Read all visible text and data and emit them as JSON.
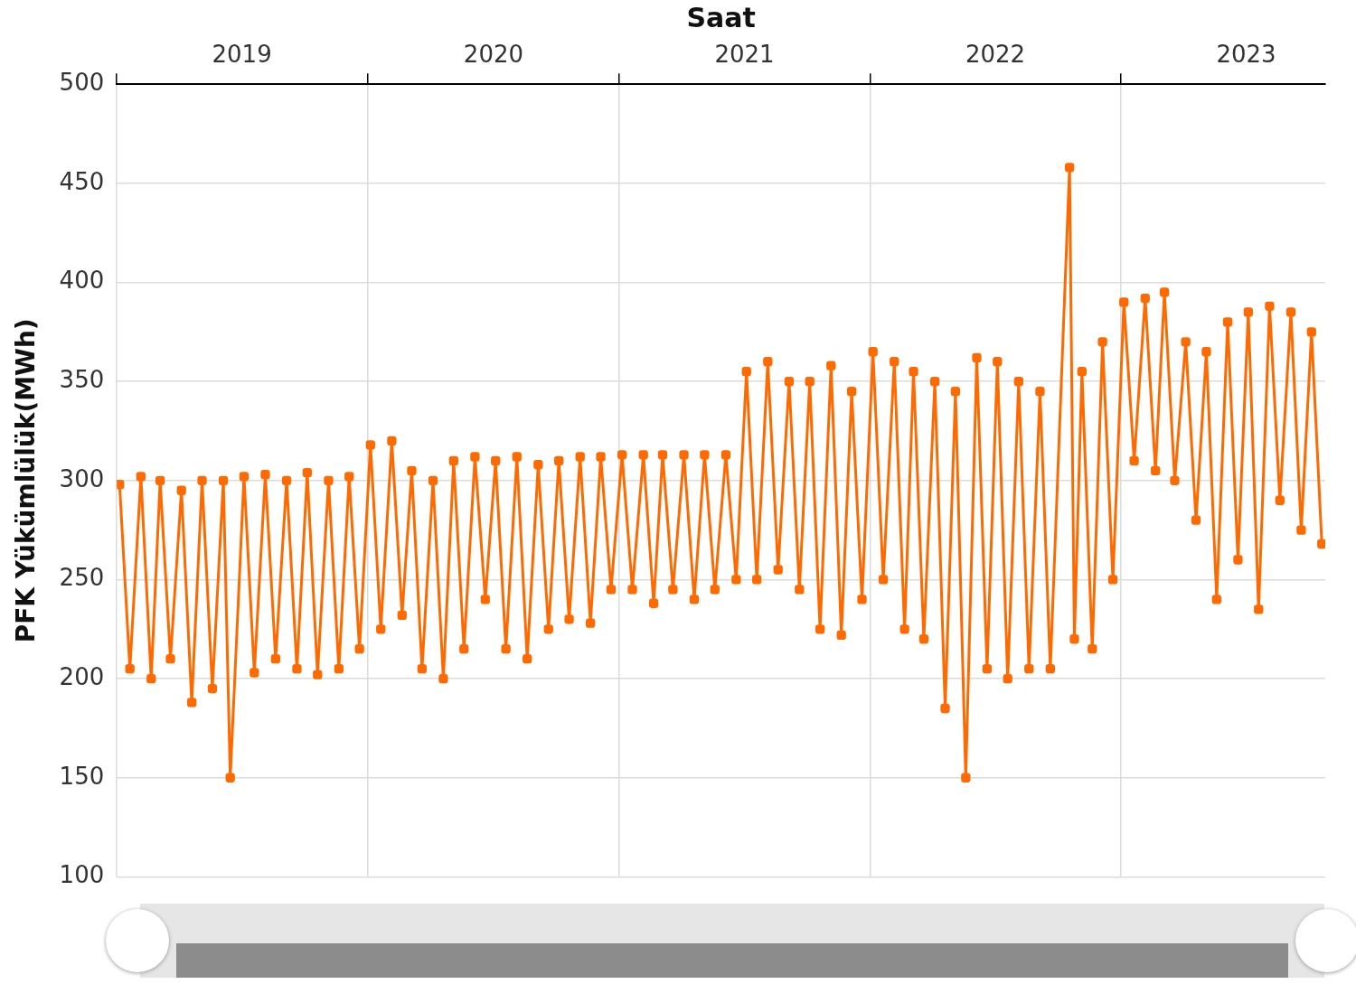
{
  "chart_data": {
    "type": "line",
    "xlabel": "Saat",
    "ylabel": "PFK Yükümlülük(MWh)",
    "x": [
      "2019-01-05",
      "2019-01-20",
      "2019-02-05",
      "2019-02-20",
      "2019-03-05",
      "2019-03-20",
      "2019-04-05",
      "2019-04-20",
      "2019-05-05",
      "2019-05-20",
      "2019-06-05",
      "2019-06-15",
      "2019-07-05",
      "2019-07-20",
      "2019-08-05",
      "2019-08-20",
      "2019-09-05",
      "2019-09-20",
      "2019-10-05",
      "2019-10-20",
      "2019-11-05",
      "2019-11-20",
      "2019-12-05",
      "2019-12-20",
      "2020-01-05",
      "2020-01-20",
      "2020-02-05",
      "2020-02-20",
      "2020-03-05",
      "2020-03-20",
      "2020-04-05",
      "2020-04-20",
      "2020-05-05",
      "2020-05-20",
      "2020-06-05",
      "2020-06-20",
      "2020-07-05",
      "2020-07-20",
      "2020-08-05",
      "2020-08-20",
      "2020-09-05",
      "2020-09-20",
      "2020-10-05",
      "2020-10-20",
      "2020-11-05",
      "2020-11-20",
      "2020-12-05",
      "2020-12-20",
      "2021-01-05",
      "2021-01-20",
      "2021-02-05",
      "2021-02-20",
      "2021-03-05",
      "2021-03-20",
      "2021-04-05",
      "2021-04-20",
      "2021-05-05",
      "2021-05-20",
      "2021-06-05",
      "2021-06-20",
      "2021-07-05",
      "2021-07-20",
      "2021-08-05",
      "2021-08-20",
      "2021-09-05",
      "2021-09-20",
      "2021-10-05",
      "2021-10-20",
      "2021-11-05",
      "2021-11-20",
      "2021-12-05",
      "2021-12-20",
      "2022-01-05",
      "2022-01-20",
      "2022-02-05",
      "2022-02-20",
      "2022-03-05",
      "2022-03-20",
      "2022-04-05",
      "2022-04-20",
      "2022-05-05",
      "2022-05-20",
      "2022-06-05",
      "2022-06-20",
      "2022-07-05",
      "2022-07-20",
      "2022-08-05",
      "2022-08-20",
      "2022-09-05",
      "2022-09-20",
      "2022-10-18",
      "2022-10-25",
      "2022-11-05",
      "2022-11-20",
      "2022-12-05",
      "2022-12-20",
      "2023-01-05",
      "2023-01-20",
      "2023-02-05",
      "2023-02-20",
      "2023-03-05",
      "2023-03-20",
      "2023-04-05",
      "2023-04-20",
      "2023-05-05",
      "2023-05-20",
      "2023-06-05",
      "2023-06-20",
      "2023-07-05",
      "2023-07-20",
      "2023-08-05",
      "2023-08-20",
      "2023-09-05",
      "2023-09-20",
      "2023-10-05",
      "2023-10-20"
    ],
    "series": [
      {
        "color": "#ff6a00",
        "values": [
          298,
          205,
          302,
          200,
          300,
          210,
          295,
          188,
          300,
          195,
          300,
          150,
          302,
          203,
          303,
          210,
          300,
          205,
          304,
          202,
          300,
          205,
          302,
          215,
          318,
          225,
          320,
          232,
          305,
          205,
          300,
          200,
          310,
          215,
          312,
          240,
          310,
          215,
          312,
          210,
          308,
          225,
          310,
          230,
          312,
          228,
          312,
          245,
          313,
          245,
          313,
          238,
          313,
          245,
          313,
          240,
          313,
          245,
          313,
          250,
          355,
          250,
          360,
          255,
          350,
          245,
          350,
          225,
          358,
          222,
          345,
          240,
          365,
          250,
          360,
          225,
          355,
          220,
          350,
          185,
          345,
          150,
          362,
          205,
          360,
          200,
          350,
          205,
          345,
          205,
          458,
          220,
          355,
          215,
          370,
          250,
          390,
          310,
          392,
          305,
          395,
          300,
          370,
          280,
          365,
          240,
          380,
          260,
          385,
          235,
          388,
          290,
          385,
          275,
          375,
          268
        ]
      }
    ],
    "xlim": [
      "2019-01-01",
      "2023-10-25"
    ],
    "xticks": [
      {
        "value": "2019-01-01",
        "label": null
      },
      {
        "value": "2019-07-02",
        "label": "2019"
      },
      {
        "value": "2020-01-01",
        "label": null
      },
      {
        "value": "2020-07-02",
        "label": "2020"
      },
      {
        "value": "2021-01-01",
        "label": null
      },
      {
        "value": "2021-07-02",
        "label": "2021"
      },
      {
        "value": "2022-01-01",
        "label": null
      },
      {
        "value": "2022-07-02",
        "label": "2022"
      },
      {
        "value": "2023-01-01",
        "label": null
      },
      {
        "value": "2023-07-02",
        "label": "2023"
      }
    ],
    "ylim": [
      100,
      500
    ],
    "yticks": [
      100,
      150,
      200,
      250,
      300,
      350,
      400,
      450,
      500
    ],
    "grid": true,
    "legend": false,
    "marker": "square",
    "line_style": "solid"
  }
}
